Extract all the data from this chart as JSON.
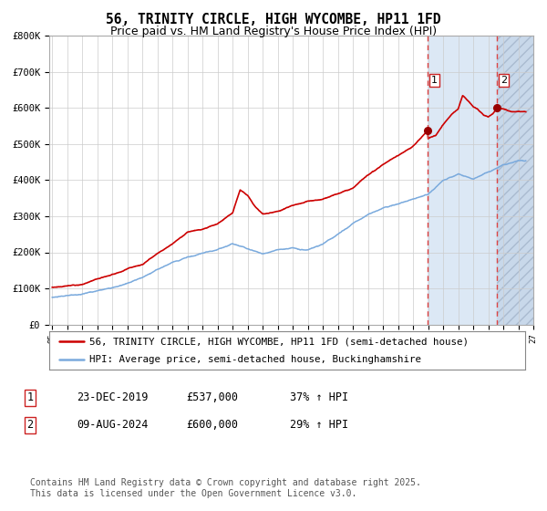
{
  "title": "56, TRINITY CIRCLE, HIGH WYCOMBE, HP11 1FD",
  "subtitle": "Price paid vs. HM Land Registry's House Price Index (HPI)",
  "legend_line1": "56, TRINITY CIRCLE, HIGH WYCOMBE, HP11 1FD (semi-detached house)",
  "legend_line2": "HPI: Average price, semi-detached house, Buckinghamshire",
  "annotation1_label": "1",
  "annotation1_date": "23-DEC-2019",
  "annotation1_price": "£537,000",
  "annotation1_hpi": "37% ↑ HPI",
  "annotation2_label": "2",
  "annotation2_date": "09-AUG-2024",
  "annotation2_price": "£600,000",
  "annotation2_hpi": "29% ↑ HPI",
  "footer": "Contains HM Land Registry data © Crown copyright and database right 2025.\nThis data is licensed under the Open Government Licence v3.0.",
  "x_start_year": 1995,
  "x_end_year": 2027,
  "y_min": 0,
  "y_max": 800000,
  "y_ticks": [
    0,
    100000,
    200000,
    300000,
    400000,
    500000,
    600000,
    700000,
    800000
  ],
  "y_tick_labels": [
    "£0",
    "£100K",
    "£200K",
    "£300K",
    "£400K",
    "£500K",
    "£600K",
    "£700K",
    "£800K"
  ],
  "sale1_year": 2019.97,
  "sale1_value": 537000,
  "sale2_year": 2024.6,
  "sale2_value": 600000,
  "red_line_color": "#cc0000",
  "blue_line_color": "#7aaadd",
  "dashed_line_color": "#dd4444",
  "shaded_color": "#dce8f5",
  "hatch_color": "#c8d8ea",
  "bg_color": "#ffffff",
  "grid_color": "#cccccc",
  "title_fontsize": 10.5,
  "subtitle_fontsize": 9,
  "axis_fontsize": 7.5,
  "legend_fontsize": 8,
  "footer_fontsize": 7
}
